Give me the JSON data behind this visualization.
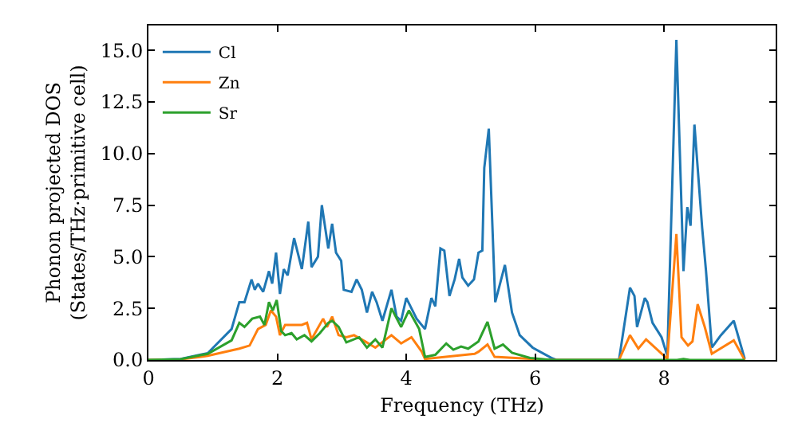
{
  "chart_data": {
    "type": "line",
    "xlabel": "Frequency (THz)",
    "ylabel": "Phonon projected DOS\n(States/THz·primitive cell)",
    "xlim": [
      0,
      9.73
    ],
    "ylim": [
      0,
      16.2
    ],
    "xticks": [
      0,
      2,
      4,
      6,
      8
    ],
    "yticks": [
      {
        "value": 0,
        "label": "0.0"
      },
      {
        "value": 2.5,
        "label": "2.5"
      },
      {
        "value": 5,
        "label": "5.0"
      },
      {
        "value": 7.5,
        "label": "7.5"
      },
      {
        "value": 10,
        "label": "10.0"
      },
      {
        "value": 12.5,
        "label": "12.5"
      },
      {
        "value": 15,
        "label": "15.0"
      }
    ],
    "grid": false,
    "legend": "top left",
    "marker": "none",
    "line_style": "solid",
    "series": [
      {
        "name": "Cl",
        "color": "#1f77b4",
        "x": [
          0,
          0.5,
          0.92,
          1.29,
          1.41,
          1.49,
          1.6,
          1.65,
          1.7,
          1.78,
          1.87,
          1.92,
          1.98,
          2.04,
          2.1,
          2.16,
          2.26,
          2.38,
          2.48,
          2.53,
          2.63,
          2.69,
          2.79,
          2.85,
          2.91,
          2.99,
          3.03,
          3.15,
          3.23,
          3.31,
          3.39,
          3.47,
          3.54,
          3.63,
          3.77,
          3.85,
          3.92,
          4.0,
          4.08,
          4.16,
          4.29,
          4.39,
          4.45,
          4.53,
          4.59,
          4.67,
          4.75,
          4.82,
          4.87,
          4.96,
          5.05,
          5.12,
          5.18,
          5.21,
          5.28,
          5.38,
          5.43,
          5.53,
          5.64,
          5.76,
          5.96,
          6.25,
          6.33,
          7.3,
          7.47,
          7.54,
          7.58,
          7.7,
          7.74,
          7.82,
          7.96,
          8.05,
          8.19,
          8.3,
          8.36,
          8.41,
          8.47,
          8.59,
          8.65,
          8.74,
          8.88,
          9.08,
          9.25
        ],
        "values": [
          0,
          0.05,
          0.33,
          1.5,
          2.8,
          2.8,
          3.9,
          3.4,
          3.7,
          3.3,
          4.3,
          3.7,
          5.2,
          3.2,
          4.4,
          4.1,
          5.9,
          4.4,
          6.7,
          4.5,
          5.0,
          7.5,
          5.4,
          6.6,
          5.2,
          4.8,
          3.4,
          3.3,
          3.9,
          3.4,
          2.3,
          3.3,
          2.8,
          1.9,
          3.4,
          2.1,
          1.9,
          3.0,
          2.5,
          2.0,
          1.5,
          3.0,
          2.6,
          5.4,
          5.3,
          3.1,
          3.9,
          4.9,
          4.0,
          3.6,
          3.9,
          5.2,
          5.3,
          9.3,
          11.2,
          2.8,
          3.4,
          4.6,
          2.3,
          1.2,
          0.6,
          0.1,
          0,
          0,
          3.5,
          3.1,
          1.6,
          3.0,
          2.8,
          1.8,
          1.1,
          0.2,
          15.5,
          4.3,
          7.4,
          6.5,
          11.4,
          6.4,
          4.3,
          0.6,
          1.2,
          1.9,
          0.05
        ]
      },
      {
        "name": "Zn",
        "color": "#ff7f0e",
        "x": [
          0,
          0.5,
          0.92,
          1.41,
          1.57,
          1.7,
          1.82,
          1.9,
          1.98,
          2.04,
          2.12,
          2.38,
          2.46,
          2.53,
          2.71,
          2.77,
          2.85,
          2.95,
          3.07,
          3.19,
          3.36,
          3.52,
          3.77,
          3.92,
          4.08,
          4.24,
          4.29,
          5.06,
          5.12,
          5.26,
          5.37,
          6.25,
          7.3,
          7.47,
          7.6,
          7.72,
          8.05,
          8.19,
          8.27,
          8.37,
          8.44,
          8.52,
          8.63,
          8.74,
          9.08,
          9.25
        ],
        "values": [
          0,
          0.03,
          0.2,
          0.55,
          0.7,
          1.5,
          1.7,
          2.4,
          2.1,
          1.2,
          1.7,
          1.7,
          1.8,
          1.0,
          2.0,
          1.6,
          2.1,
          1.2,
          1.1,
          1.2,
          0.9,
          0.6,
          1.2,
          0.8,
          1.1,
          0.4,
          0.05,
          0.3,
          0.4,
          0.75,
          0.15,
          0,
          0,
          1.2,
          0.55,
          1.0,
          0.05,
          6.1,
          1.1,
          0.7,
          0.9,
          2.7,
          1.6,
          0.3,
          0.95,
          0
        ]
      },
      {
        "name": "Sr",
        "color": "#2ca02c",
        "x": [
          0,
          0.5,
          0.92,
          1.29,
          1.41,
          1.49,
          1.61,
          1.73,
          1.8,
          1.87,
          1.93,
          1.99,
          2.06,
          2.12,
          2.22,
          2.3,
          2.42,
          2.53,
          2.66,
          2.79,
          2.85,
          2.95,
          3.07,
          3.27,
          3.39,
          3.52,
          3.63,
          3.77,
          3.92,
          4.04,
          4.2,
          4.29,
          4.45,
          4.62,
          4.73,
          4.85,
          4.96,
          5.12,
          5.26,
          5.37,
          5.5,
          5.64,
          5.92,
          6.25,
          8.2,
          8.3,
          8.4,
          9.25
        ],
        "values": [
          0,
          0.04,
          0.3,
          0.95,
          1.8,
          1.6,
          2.0,
          2.1,
          1.7,
          2.8,
          2.4,
          2.9,
          1.4,
          1.2,
          1.3,
          1.0,
          1.2,
          0.9,
          1.3,
          1.8,
          1.9,
          1.6,
          0.85,
          1.1,
          0.6,
          1.0,
          0.6,
          2.5,
          1.6,
          2.4,
          1.5,
          0.15,
          0.25,
          0.8,
          0.5,
          0.65,
          0.55,
          0.9,
          1.85,
          0.55,
          0.75,
          0.35,
          0.1,
          0,
          0,
          0.05,
          0,
          0
        ]
      }
    ]
  }
}
